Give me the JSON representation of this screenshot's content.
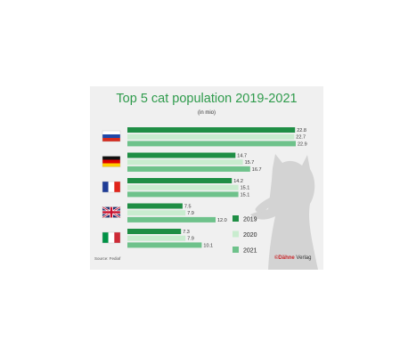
{
  "chart_data": {
    "type": "bar",
    "orientation": "horizontal",
    "title": "Top 5 cat population 2019-2021",
    "subtitle": "(in mio)",
    "categories": [
      "Russia",
      "Germany",
      "France",
      "United Kingdom",
      "Italy"
    ],
    "series": [
      {
        "name": "2019",
        "values": [
          22.8,
          14.7,
          14.2,
          7.5,
          7.3
        ],
        "color": "#1f8e45"
      },
      {
        "name": "2020",
        "values": [
          22.7,
          15.7,
          15.1,
          7.9,
          7.9
        ],
        "color": "#c9eccf"
      },
      {
        "name": "2021",
        "values": [
          22.9,
          16.7,
          15.1,
          12.0,
          10.1
        ],
        "color": "#6ec28b"
      }
    ],
    "value_labels": [
      [
        "22.8",
        "22.7",
        "22.9"
      ],
      [
        "14.7",
        "15.7",
        "16.7"
      ],
      [
        "14.2",
        "15.1",
        "15.1"
      ],
      [
        "7.5",
        "7.9",
        "12.0"
      ],
      [
        "7.3",
        "7.9",
        "10.1"
      ]
    ],
    "xlim": [
      0,
      22.9
    ],
    "legend_position": "bottom-right",
    "grid": false
  },
  "flags": [
    "russia-flag-icon",
    "germany-flag-icon",
    "france-flag-icon",
    "uk-flag-icon",
    "italy-flag-icon"
  ],
  "background_icon": "cat-silhouette-icon",
  "footer": {
    "source": "Source: Fediaf",
    "brand_mark": "©",
    "brand_name": "Dähne",
    "brand_suffix": " Verlag"
  },
  "colors": {
    "title": "#2f9b4c",
    "card_background": "#f0f0f0",
    "brand_red": "#c8262a"
  }
}
